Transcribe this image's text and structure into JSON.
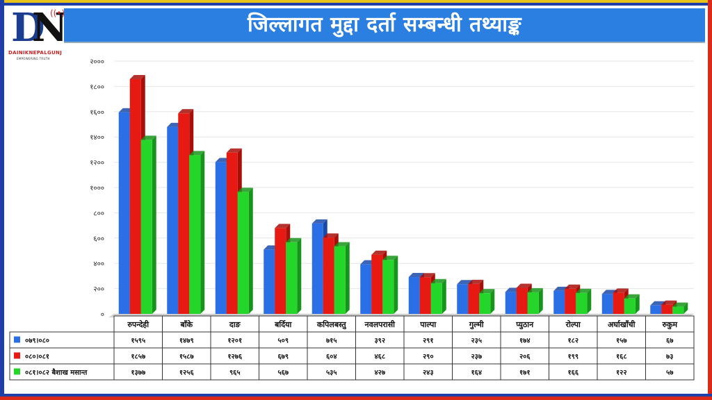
{
  "header": {
    "title": "जिल्लागत मुद्दा दर्ता सम्बन्धी तथ्याङ्क"
  },
  "logo": {
    "brand": "DAINIKNEPALGUNJ",
    "tagline": "EMPOWERING TRUTH",
    "letter_1": "D",
    "letter_2": "N"
  },
  "colors": {
    "series_1": "#2b6fe6",
    "series_2": "#e61a12",
    "series_3": "#25d62a",
    "title_bar": "#2a7fe0"
  },
  "chart_data": {
    "type": "bar",
    "title": "जिल्लागत मुद्दा दर्ता सम्बन्धी तथ्याङ्क",
    "categories": [
      "रुपन्देही",
      "बाँके",
      "दाङ",
      "बर्दिया",
      "कपिलबस्तु",
      "नवलपरासी",
      "पाल्पा",
      "गुल्मी",
      "प्युठान",
      "रोल्पा",
      "अर्घाखाँची",
      "रुकुम"
    ],
    "series": [
      {
        "name": "०७९।०८०",
        "values": [
          1595,
          1479,
          1201,
          509,
          715,
          392,
          291,
          235,
          174,
          182,
          157,
          67
        ],
        "labels": [
          "१५९५",
          "१४७९",
          "१२०१",
          "५०९",
          "७१५",
          "३९२",
          "२९१",
          "२३५",
          "१७४",
          "१८२",
          "१५७",
          "६७"
        ]
      },
      {
        "name": "०८०।०८१",
        "values": [
          1857,
          1587,
          1276,
          679,
          604,
          468,
          290,
          237,
          206,
          199,
          168,
          73
        ],
        "labels": [
          "१८५७",
          "१५८७",
          "१२७६",
          "६७९",
          "६०४",
          "४६८",
          "२९०",
          "२३७",
          "२०६",
          "१९९",
          "१६८",
          "७३"
        ]
      },
      {
        "name": "०८१।०८२ बैशाख मसान्त",
        "values": [
          1377,
          1256,
          965,
          567,
          535,
          427,
          243,
          164,
          171,
          166,
          122,
          57
        ],
        "labels": [
          "१३७७",
          "१२५६",
          "९६५",
          "५६७",
          "५३५",
          "४२७",
          "२४३",
          "१६४",
          "१७१",
          "१६६",
          "१२२",
          "५७"
        ]
      }
    ],
    "ylim": [
      0,
      2000
    ],
    "yticks": [
      0,
      200,
      400,
      600,
      800,
      1000,
      1200,
      1400,
      1600,
      1800,
      2000
    ],
    "ytick_labels": [
      "०",
      "२००",
      "४००",
      "६००",
      "८००",
      "१०००",
      "१२००",
      "१४००",
      "१६००",
      "१८००",
      "२०००"
    ],
    "grid": true,
    "data_table": true
  }
}
